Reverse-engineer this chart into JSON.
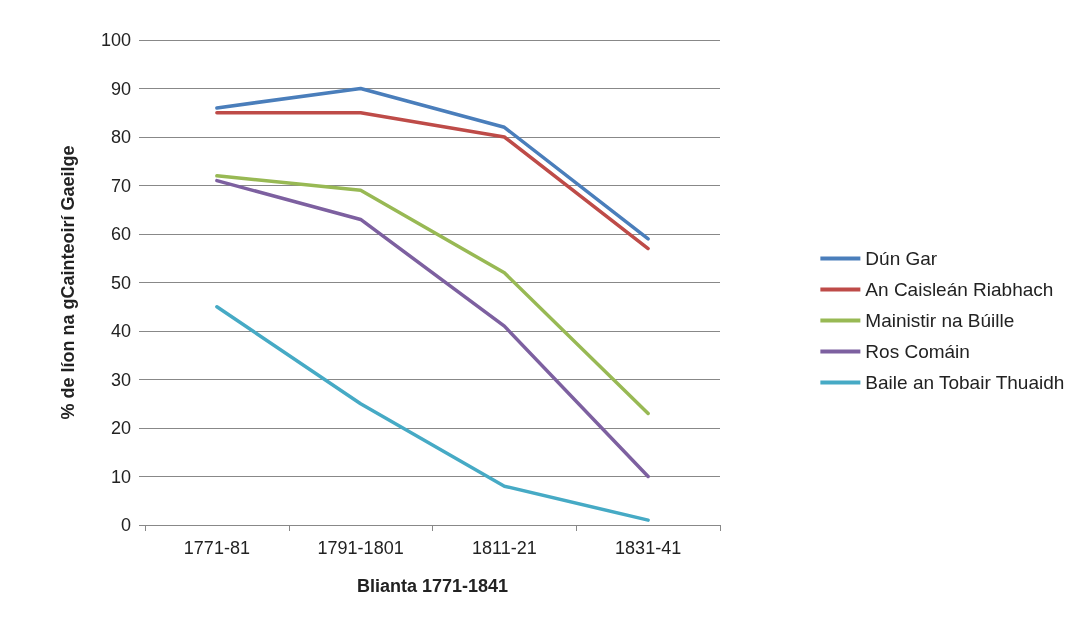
{
  "chart_data": {
    "type": "line",
    "xlabel": "Blianta 1771-1841",
    "ylabel": "% de líon na gCainteoirí Gaeilge",
    "categories": [
      "1771-81",
      "1791-1801",
      "1811-21",
      "1831-41"
    ],
    "series": [
      {
        "name": "Dún Gar",
        "color": "#4a7ebb",
        "values": [
          86,
          90,
          82,
          59
        ]
      },
      {
        "name": "An Caisleán Riabhach",
        "color": "#be4b48",
        "values": [
          85,
          85,
          80,
          57
        ]
      },
      {
        "name": "Mainistir na Búille",
        "color": "#98b954",
        "values": [
          72,
          69,
          52,
          23
        ]
      },
      {
        "name": "Ros Comáin",
        "color": "#7d60a0",
        "values": [
          71,
          63,
          41,
          10
        ]
      },
      {
        "name": "Baile an Tobair Thuaidh",
        "color": "#46aac5",
        "values": [
          45,
          25,
          8,
          1
        ]
      }
    ],
    "ylim": [
      0,
      100
    ],
    "yticks": [
      0,
      10,
      20,
      30,
      40,
      50,
      60,
      70,
      80,
      90,
      100
    ],
    "grid": "y",
    "legend": "right",
    "marker": "none",
    "line_style": "solid"
  }
}
